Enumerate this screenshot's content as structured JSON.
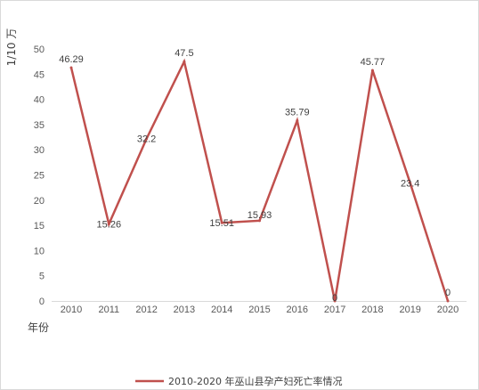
{
  "chart_data": {
    "type": "line",
    "categories": [
      "2010",
      "2011",
      "2012",
      "2013",
      "2014",
      "2015",
      "2016",
      "2017",
      "2018",
      "2019",
      "2020"
    ],
    "series": [
      {
        "name": "2010-2020 年巫山县孕产妇死亡率情况",
        "values": [
          46.29,
          15.26,
          32.2,
          47.5,
          15.51,
          15.93,
          35.79,
          0,
          45.77,
          23.4,
          0
        ],
        "labels": [
          "46.29",
          "15.26",
          "32.2",
          "47.5",
          "15.51",
          "15.93",
          "35.79",
          "0",
          "45.77",
          "23.4",
          "0"
        ],
        "color": "#c0504d"
      }
    ],
    "ylabel": "1/10 万",
    "xlabel": "年份",
    "ylim": [
      0,
      50
    ],
    "yticks": [
      "0",
      "5",
      "10",
      "15",
      "20",
      "25",
      "30",
      "35",
      "40",
      "45",
      "50"
    ],
    "grid": false,
    "legend": "bottom"
  }
}
